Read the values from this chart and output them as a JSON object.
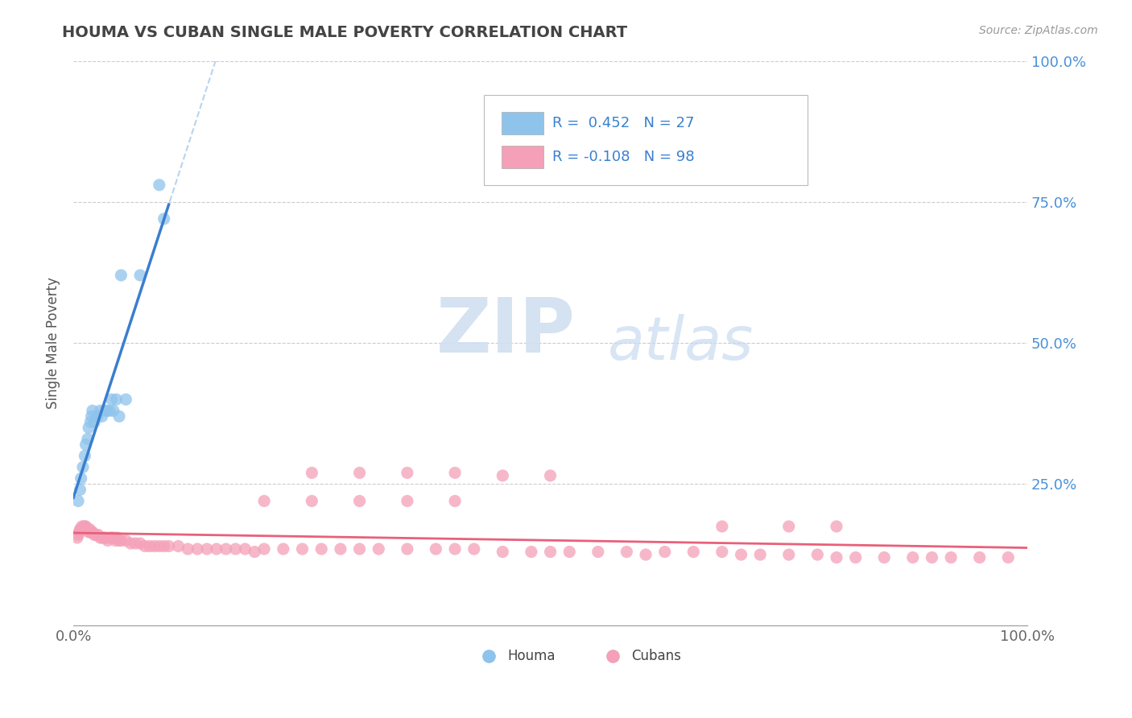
{
  "title": "HOUMA VS CUBAN SINGLE MALE POVERTY CORRELATION CHART",
  "source_text": "Source: ZipAtlas.com",
  "ylabel": "Single Male Poverty",
  "xlim": [
    0.0,
    1.0
  ],
  "ylim": [
    0.0,
    1.0
  ],
  "color_houma": "#8ec4ec",
  "color_cuban": "#f4a0b8",
  "color_line_houma": "#3a7ecf",
  "color_line_cuban": "#e8607a",
  "color_trendline_dashed": "#b8d4ee",
  "background_color": "#ffffff",
  "watermark_zip": "ZIP",
  "watermark_atlas": "atlas",
  "legend_text1": "R =  0.452   N = 27",
  "legend_text2": "R = -0.108   N = 98",
  "houma_x": [
    0.005,
    0.007,
    0.008,
    0.01,
    0.012,
    0.013,
    0.015,
    0.016,
    0.018,
    0.019,
    0.02,
    0.022,
    0.025,
    0.028,
    0.03,
    0.033,
    0.035,
    0.038,
    0.04,
    0.042,
    0.045,
    0.048,
    0.05,
    0.055,
    0.07,
    0.09,
    0.095
  ],
  "houma_y": [
    0.22,
    0.24,
    0.26,
    0.28,
    0.3,
    0.32,
    0.33,
    0.35,
    0.36,
    0.37,
    0.38,
    0.36,
    0.37,
    0.38,
    0.37,
    0.38,
    0.38,
    0.38,
    0.4,
    0.38,
    0.4,
    0.37,
    0.62,
    0.4,
    0.62,
    0.78,
    0.72
  ],
  "cuban_x": [
    0.004,
    0.005,
    0.006,
    0.007,
    0.008,
    0.009,
    0.01,
    0.011,
    0.012,
    0.013,
    0.014,
    0.015,
    0.016,
    0.017,
    0.018,
    0.019,
    0.02,
    0.022,
    0.024,
    0.026,
    0.028,
    0.03,
    0.032,
    0.034,
    0.036,
    0.038,
    0.04,
    0.042,
    0.044,
    0.046,
    0.048,
    0.05,
    0.055,
    0.06,
    0.065,
    0.07,
    0.075,
    0.08,
    0.085,
    0.09,
    0.095,
    0.1,
    0.11,
    0.12,
    0.13,
    0.14,
    0.15,
    0.16,
    0.17,
    0.18,
    0.19,
    0.2,
    0.22,
    0.24,
    0.26,
    0.28,
    0.3,
    0.32,
    0.35,
    0.38,
    0.4,
    0.42,
    0.45,
    0.48,
    0.5,
    0.52,
    0.55,
    0.58,
    0.6,
    0.62,
    0.65,
    0.68,
    0.7,
    0.72,
    0.75,
    0.78,
    0.8,
    0.82,
    0.85,
    0.88,
    0.9,
    0.92,
    0.95,
    0.98,
    0.25,
    0.3,
    0.35,
    0.4,
    0.45,
    0.5,
    0.2,
    0.25,
    0.3,
    0.35,
    0.4,
    0.68,
    0.75,
    0.8
  ],
  "cuban_y": [
    0.155,
    0.16,
    0.165,
    0.17,
    0.17,
    0.175,
    0.17,
    0.175,
    0.175,
    0.175,
    0.17,
    0.17,
    0.165,
    0.17,
    0.165,
    0.165,
    0.165,
    0.16,
    0.16,
    0.16,
    0.155,
    0.155,
    0.155,
    0.155,
    0.15,
    0.155,
    0.155,
    0.155,
    0.15,
    0.155,
    0.15,
    0.15,
    0.15,
    0.145,
    0.145,
    0.145,
    0.14,
    0.14,
    0.14,
    0.14,
    0.14,
    0.14,
    0.14,
    0.135,
    0.135,
    0.135,
    0.135,
    0.135,
    0.135,
    0.135,
    0.13,
    0.135,
    0.135,
    0.135,
    0.135,
    0.135,
    0.135,
    0.135,
    0.135,
    0.135,
    0.135,
    0.135,
    0.13,
    0.13,
    0.13,
    0.13,
    0.13,
    0.13,
    0.125,
    0.13,
    0.13,
    0.13,
    0.125,
    0.125,
    0.125,
    0.125,
    0.12,
    0.12,
    0.12,
    0.12,
    0.12,
    0.12,
    0.12,
    0.12,
    0.27,
    0.27,
    0.27,
    0.27,
    0.265,
    0.265,
    0.22,
    0.22,
    0.22,
    0.22,
    0.22,
    0.175,
    0.175,
    0.175
  ]
}
